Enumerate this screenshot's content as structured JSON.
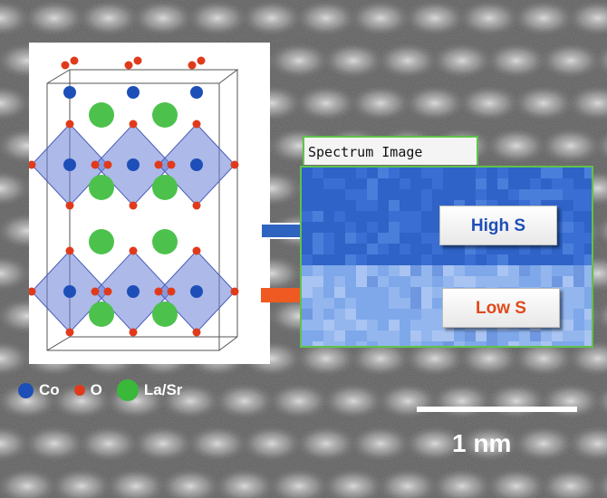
{
  "spectrum_image": {
    "title": "Spectrum Image",
    "high_label": "High S",
    "low_label": "Low S"
  },
  "legend": [
    {
      "label": "Co",
      "color": "#1e4fb8"
    },
    {
      "label": "O",
      "color": "#e03a1c"
    },
    {
      "label": "La/Sr",
      "color": "#3ab83a"
    }
  ],
  "scale_bar": {
    "label": "1 nm"
  },
  "colors": {
    "high_text": "#1e4fb8",
    "low_text": "#e04a1c",
    "arrow_high": "#2f63c0",
    "arrow_low": "#ef5a22",
    "frame_green": "#5fc24a"
  }
}
